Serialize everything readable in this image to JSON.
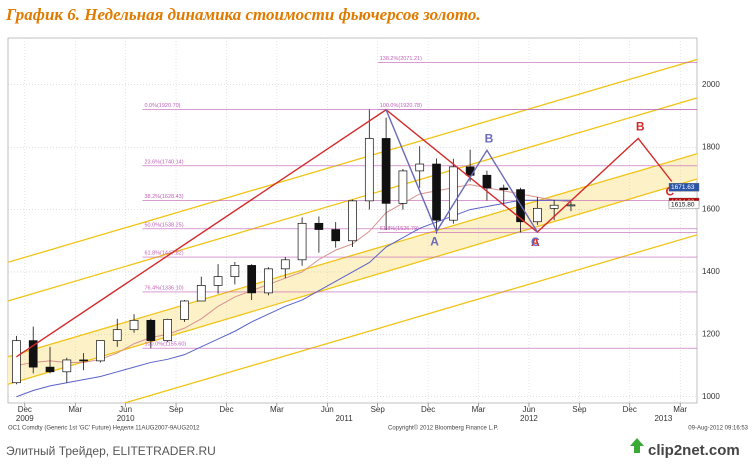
{
  "chart_data": {
    "type": "candlestick",
    "title": "График 6.   Недельная динамика стоимости фьючерсов золото.",
    "x": [
      "2009-11",
      "2009-12",
      "2010-01",
      "2010-02",
      "2010-03",
      "2010-04",
      "2010-05",
      "2010-06",
      "2010-07",
      "2010-08",
      "2010-09",
      "2010-10",
      "2010-11",
      "2010-12",
      "2011-01",
      "2011-02",
      "2011-03",
      "2011-04",
      "2011-05",
      "2011-06",
      "2011-07",
      "2011-08",
      "2011-09",
      "2011-10",
      "2011-11",
      "2011-12",
      "2012-01",
      "2012-02",
      "2012-03",
      "2012-04",
      "2012-05",
      "2012-06",
      "2012-07",
      "2012-08"
    ],
    "open": [
      1045,
      1180,
      1095,
      1080,
      1118,
      1115,
      1180,
      1215,
      1245,
      1180,
      1248,
      1307,
      1357,
      1385,
      1421,
      1333,
      1410,
      1439,
      1556,
      1536,
      1500,
      1628,
      1828,
      1620,
      1724,
      1746,
      1566,
      1737,
      1710,
      1669,
      1664,
      1561,
      1604,
      1614
    ],
    "high": [
      1195,
      1225,
      1160,
      1125,
      1140,
      1180,
      1250,
      1265,
      1250,
      1250,
      1310,
      1385,
      1425,
      1432,
      1425,
      1415,
      1448,
      1575,
      1578,
      1560,
      1632,
      1921,
      1895,
      1730,
      1803,
      1764,
      1763,
      1792,
      1725,
      1680,
      1670,
      1640,
      1630,
      1625
    ],
    "low": [
      1040,
      1075,
      1075,
      1045,
      1085,
      1110,
      1160,
      1205,
      1155,
      1175,
      1240,
      1310,
      1330,
      1360,
      1310,
      1325,
      1380,
      1420,
      1462,
      1478,
      1480,
      1600,
      1535,
      1600,
      1670,
      1523,
      1555,
      1690,
      1629,
      1612,
      1527,
      1551,
      1566,
      1595
    ],
    "close": [
      1180,
      1095,
      1080,
      1118,
      1115,
      1180,
      1215,
      1245,
      1180,
      1248,
      1307,
      1357,
      1385,
      1421,
      1333,
      1410,
      1439,
      1556,
      1536,
      1500,
      1628,
      1828,
      1620,
      1724,
      1746,
      1566,
      1737,
      1710,
      1669,
      1664,
      1561,
      1604,
      1614,
      1615
    ],
    "up_color": "#ffffff",
    "down_color": "#111111",
    "overlays": [
      {
        "color": "#d9928f",
        "values": [
          1100,
          1110,
          1115,
          1110,
          1110,
          1120,
          1140,
          1170,
          1190,
          1200,
          1220,
          1250,
          1290,
          1320,
          1340,
          1360,
          1380,
          1400,
          1440,
          1470,
          1490,
          1530,
          1590,
          1620,
          1650,
          1660,
          1670,
          1680,
          1670,
          1660,
          1650,
          1640,
          1630,
          1625
        ]
      },
      {
        "color": "#5a62c8",
        "values": [
          1000,
          1020,
          1035,
          1045,
          1055,
          1065,
          1080,
          1095,
          1110,
          1120,
          1135,
          1160,
          1185,
          1210,
          1240,
          1265,
          1290,
          1310,
          1340,
          1370,
          1400,
          1430,
          1480,
          1510,
          1540,
          1560,
          1580,
          1600,
          1610,
          1620,
          1630,
          1630,
          1630,
          1630
        ]
      }
    ],
    "xlim": [
      "2009-11",
      "2013-04"
    ],
    "ylim": [
      980,
      2150
    ],
    "yticks": [
      1000,
      1200,
      1400,
      1600,
      1800,
      2000
    ],
    "xticks": [
      {
        "value": "2009-12",
        "label": "Dec"
      },
      {
        "value": "2010-03",
        "label": "Mar"
      },
      {
        "value": "2010-06",
        "label": "Jun"
      },
      {
        "value": "2010-09",
        "label": "Sep"
      },
      {
        "value": "2010-12",
        "label": "Dec"
      },
      {
        "value": "2011-03",
        "label": "Mar"
      },
      {
        "value": "2011-06",
        "label": "Jun"
      },
      {
        "value": "2011-09",
        "label": "Sep"
      },
      {
        "value": "2011-12",
        "label": "Dec"
      },
      {
        "value": "2012-03",
        "label": "Mar"
      },
      {
        "value": "2012-06",
        "label": "Jun"
      },
      {
        "value": "2012-09",
        "label": "Sep"
      },
      {
        "value": "2012-12",
        "label": "Dec"
      },
      {
        "value": "2013-03",
        "label": "Mar"
      }
    ],
    "year_ticks": [
      {
        "value": "2009-12",
        "label": "2009"
      },
      {
        "value": "2010-06",
        "label": "2010"
      },
      {
        "value": "2011-07",
        "label": "2011"
      },
      {
        "value": "2012-06",
        "label": "2012"
      },
      {
        "value": "2013-02",
        "label": "2013"
      }
    ],
    "grid": true,
    "channel_color": "#f0c419",
    "channels": [
      {
        "x": [
          "2009-11",
          "2013-04"
        ],
        "y": [
          1431,
          2081
        ]
      },
      {
        "x": [
          "2009-11",
          "2013-04"
        ],
        "y": [
          1307,
          1958
        ]
      },
      {
        "x": [
          "2009-11",
          "2013-04"
        ],
        "y": [
          1128,
          1779
        ],
        "fill": "#fdf1c8"
      },
      {
        "x": [
          "2009-11",
          "2013-04"
        ],
        "y": [
          1040,
          1698
        ]
      },
      {
        "x": [
          "2009-11",
          "2013-04"
        ],
        "y": [
          870,
          1519
        ]
      }
    ],
    "fib_color": "#c060b8",
    "fib_levels": [
      {
        "label": "0.0%(1920.70)",
        "value": 1920.7,
        "start": "2010-07"
      },
      {
        "label": "23.6%(1740.14)",
        "value": 1740.14,
        "start": "2010-07"
      },
      {
        "label": "38.2%(1628.43)",
        "value": 1628.43,
        "start": "2010-07"
      },
      {
        "label": "50.0%(1538.25)",
        "value": 1538.25,
        "start": "2010-07"
      },
      {
        "label": "61.8%(1447.82)",
        "value": 1447.82,
        "start": "2010-07"
      },
      {
        "label": "76.4%(1336.10)",
        "value": 1336.1,
        "start": "2010-07"
      },
      {
        "label": "100.0%(1155.60)",
        "value": 1155.6,
        "start": "2010-07"
      },
      {
        "label": "138.2%(2071.21)",
        "value": 2071.21,
        "start": "2011-09"
      },
      {
        "label": "100.0%(1920.78)",
        "value": 1920.78,
        "start": "2011-09"
      },
      {
        "label": "61.8%(1526.79)",
        "value": 1526.79,
        "start": "2011-09"
      }
    ],
    "patterns": [
      {
        "color": "#d42a2a",
        "points": [
          {
            "x": "2009-11",
            "y": 1128
          },
          {
            "x": "2011-09",
            "y": 1920
          },
          {
            "x": "2012-06",
            "y": 1528,
            "label": "A"
          },
          {
            "x": "2012-12",
            "y": 1828,
            "label": "B"
          },
          {
            "x": "2013-02",
            "y": 1690,
            "label": "C"
          }
        ]
      },
      {
        "color": "#6a6ab8",
        "points": [
          {
            "x": "2011-09",
            "y": 1920
          },
          {
            "x": "2011-12",
            "y": 1530,
            "label": "A"
          },
          {
            "x": "2012-03",
            "y": 1790,
            "label": "B"
          },
          {
            "x": "2012-06",
            "y": 1528,
            "label": "C"
          }
        ]
      }
    ],
    "price_tags": [
      {
        "value": 1671.63,
        "label": "1671.63",
        "color": "#2a55a8"
      },
      {
        "value": 1624.2,
        "label": "1624.20",
        "color": "#c00000"
      },
      {
        "value": 1615.8,
        "label": "1615.80",
        "color": "#ffffff"
      }
    ],
    "source": "OC1 Comdty (Generic 1st 'GC' Future) Неделя 11AUG2007-9AUG2012",
    "copyright": "Copyright© 2012 Bloomberg Finance L.P.",
    "timestamp": "09-Aug-2012 09:16:53"
  },
  "footer": {
    "site": "Элитный Трейдер, ELITETRADER.RU",
    "logo": "clip2net.com"
  }
}
